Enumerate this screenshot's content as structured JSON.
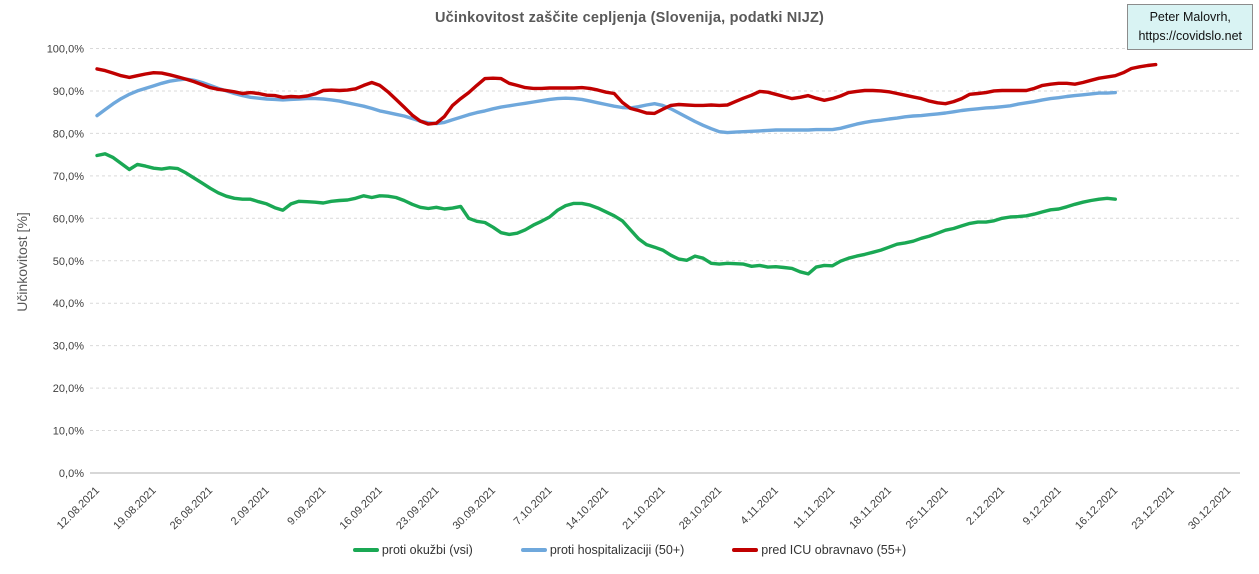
{
  "title": "Učinkovitost zaščite cepljenja (Slovenija, podatki NIJZ)",
  "badge": {
    "line1": "Peter Malovrh,",
    "line2": "https://covidslo.net",
    "bg_color": "#d9f3f3",
    "border_color": "#8c8c8c"
  },
  "y_axis": {
    "title": "Učinkovitost [%]",
    "tick_labels": [
      "0,0%",
      "10,0%",
      "20,0%",
      "30,0%",
      "40,0%",
      "50,0%",
      "60,0%",
      "70,0%",
      "80,0%",
      "90,0%",
      "100,0%"
    ]
  },
  "chart_data": {
    "type": "line",
    "title": "Učinkovitost zaščite cepljenja (Slovenija, podatki NIJZ)",
    "ylabel": "Učinkovitost [%]",
    "ylim": [
      0,
      100
    ],
    "y_ticks": [
      0,
      10,
      20,
      30,
      40,
      50,
      60,
      70,
      80,
      90,
      100
    ],
    "grid": "horizontal-dashed",
    "legend_position": "bottom",
    "x_start_date": "12.08.2021",
    "x_step_days": 1,
    "x_tick_every_days": 7,
    "x_tick_labels": [
      "12.08.2021",
      "19.08.2021",
      "26.08.2021",
      "2.09.2021",
      "9.09.2021",
      "16.09.2021",
      "23.09.2021",
      "30.09.2021",
      "7.10.2021",
      "14.10.2021",
      "21.10.2021",
      "28.10.2021",
      "4.11.2021",
      "11.11.2021",
      "18.11.2021",
      "25.11.2021",
      "2.12.2021",
      "9.12.2021",
      "16.12.2021",
      "23.12.2021",
      "30.12.2021"
    ],
    "series": [
      {
        "name": "proti okužbi (vsi)",
        "color": "#1aa854",
        "end_date": "16.12.2021",
        "values": [
          74.8,
          75.2,
          74.3,
          72.9,
          71.5,
          72.7,
          72.3,
          71.8,
          71.6,
          71.9,
          71.7,
          70.7,
          69.5,
          68.3,
          67.1,
          66.0,
          65.2,
          64.7,
          64.5,
          64.5,
          63.9,
          63.4,
          62.5,
          61.9,
          63.4,
          64.0,
          63.9,
          63.8,
          63.6,
          64.0,
          64.2,
          64.3,
          64.7,
          65.3,
          64.9,
          65.3,
          65.2,
          64.9,
          64.2,
          63.3,
          62.6,
          62.3,
          62.6,
          62.2,
          62.4,
          62.8,
          60.0,
          59.3,
          59.0,
          57.9,
          56.6,
          56.2,
          56.5,
          57.3,
          58.4,
          59.3,
          60.3,
          61.9,
          63.0,
          63.5,
          63.5,
          63.1,
          62.4,
          61.5,
          60.6,
          59.4,
          57.3,
          55.2,
          53.8,
          53.2,
          52.5,
          51.3,
          50.4,
          50.1,
          51.1,
          50.6,
          49.4,
          49.2,
          49.4,
          49.3,
          49.2,
          48.7,
          48.9,
          48.5,
          48.6,
          48.4,
          48.2,
          47.4,
          46.9,
          48.5,
          48.9,
          48.8,
          49.9,
          50.6,
          51.1,
          51.5,
          52.0,
          52.5,
          53.2,
          53.9,
          54.2,
          54.6,
          55.3,
          55.8,
          56.5,
          57.2,
          57.6,
          58.2,
          58.8,
          59.1,
          59.1,
          59.4,
          60.0,
          60.3,
          60.4,
          60.6,
          61.0,
          61.5,
          62.0,
          62.2,
          62.7,
          63.3,
          63.8,
          64.2,
          64.5,
          64.7,
          64.5
        ]
      },
      {
        "name": "proti hospitalizaciji (50+)",
        "color": "#6fa8dc",
        "end_date": "16.12.2021",
        "values": [
          84.2,
          85.6,
          87.0,
          88.2,
          89.2,
          90.0,
          90.6,
          91.2,
          91.8,
          92.3,
          92.6,
          92.8,
          92.5,
          92.0,
          91.3,
          90.6,
          90.0,
          89.4,
          88.9,
          88.5,
          88.3,
          88.1,
          88.0,
          87.9,
          88.0,
          88.1,
          88.2,
          88.2,
          88.1,
          87.9,
          87.6,
          87.2,
          86.8,
          86.4,
          85.9,
          85.3,
          84.9,
          84.5,
          84.1,
          83.5,
          82.9,
          82.5,
          82.3,
          82.6,
          83.2,
          83.8,
          84.4,
          84.9,
          85.3,
          85.8,
          86.2,
          86.5,
          86.8,
          87.1,
          87.4,
          87.7,
          88.0,
          88.2,
          88.3,
          88.2,
          88.0,
          87.6,
          87.2,
          86.8,
          86.4,
          86.1,
          86.0,
          86.3,
          86.7,
          87.0,
          86.6,
          85.8,
          84.8,
          83.8,
          82.8,
          81.9,
          81.1,
          80.4,
          80.2,
          80.3,
          80.4,
          80.5,
          80.6,
          80.7,
          80.8,
          80.8,
          80.8,
          80.8,
          80.8,
          80.9,
          80.9,
          80.9,
          81.2,
          81.7,
          82.2,
          82.6,
          82.9,
          83.1,
          83.4,
          83.6,
          83.9,
          84.1,
          84.2,
          84.4,
          84.6,
          84.8,
          85.1,
          85.4,
          85.6,
          85.8,
          86.0,
          86.1,
          86.3,
          86.5,
          86.9,
          87.2,
          87.5,
          87.9,
          88.2,
          88.4,
          88.7,
          88.9,
          89.1,
          89.3,
          89.5,
          89.5,
          89.6
        ]
      },
      {
        "name": "pred ICU obravnavo (55+)",
        "color": "#c00000",
        "end_date": "21.12.2021",
        "values": [
          95.2,
          94.8,
          94.2,
          93.6,
          93.2,
          93.6,
          94.0,
          94.3,
          94.2,
          93.8,
          93.3,
          92.8,
          92.2,
          91.5,
          90.8,
          90.4,
          90.1,
          89.8,
          89.4,
          89.6,
          89.4,
          89.0,
          88.9,
          88.5,
          88.7,
          88.6,
          88.8,
          89.3,
          90.1,
          90.2,
          90.1,
          90.2,
          90.5,
          91.3,
          92.0,
          91.3,
          89.8,
          88.0,
          86.2,
          84.3,
          82.9,
          82.2,
          82.4,
          84.0,
          86.6,
          88.2,
          89.6,
          91.3,
          92.9,
          93.0,
          92.9,
          91.8,
          91.3,
          90.8,
          90.6,
          90.6,
          90.7,
          90.7,
          90.7,
          90.7,
          90.8,
          90.6,
          90.2,
          89.7,
          89.4,
          87.3,
          85.9,
          85.4,
          84.8,
          84.7,
          85.7,
          86.6,
          86.8,
          86.7,
          86.6,
          86.6,
          86.7,
          86.6,
          86.7,
          87.5,
          88.3,
          89.0,
          89.9,
          89.7,
          89.2,
          88.7,
          88.2,
          88.5,
          88.9,
          88.3,
          87.8,
          88.2,
          88.8,
          89.6,
          89.9,
          90.1,
          90.1,
          90.0,
          89.8,
          89.4,
          89.0,
          88.6,
          88.2,
          87.6,
          87.2,
          87.0,
          87.5,
          88.2,
          89.2,
          89.4,
          89.6,
          90.0,
          90.1,
          90.1,
          90.1,
          90.1,
          90.6,
          91.3,
          91.6,
          91.8,
          91.8,
          91.6,
          92.0,
          92.5,
          93.0,
          93.3,
          93.6,
          94.3,
          95.3,
          95.7,
          96.0,
          96.2
        ]
      }
    ],
    "style": {
      "grid_color": "#d9d9d9",
      "axis_color": "#bfbfbf",
      "tick_label_color": "#404040",
      "title_color": "#595959"
    }
  }
}
